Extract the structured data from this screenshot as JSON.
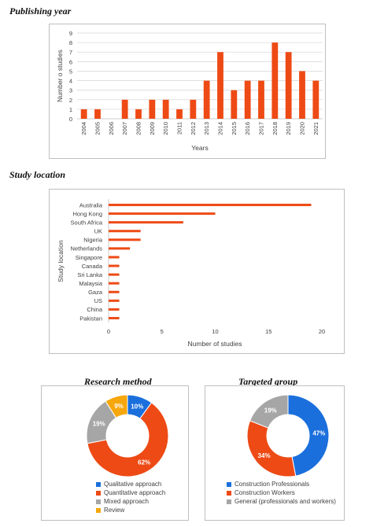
{
  "sections": {
    "publishing_year": "Publishing year",
    "study_location": "Study location",
    "research_method": "Research method",
    "targeted_group": "Targeted group"
  },
  "colors": {
    "orange": "#ee4a15",
    "blue": "#1a6fdc",
    "gray": "#a6a6a6",
    "yellow": "#f6a70c",
    "grid": "#d9d9d9"
  },
  "chart_data": [
    {
      "type": "bar",
      "categories": [
        "2004",
        "2005",
        "2006",
        "2007",
        "2008",
        "2009",
        "2010",
        "2011",
        "2012",
        "2013",
        "2014",
        "2015",
        "2016",
        "2017",
        "2018",
        "2019",
        "2020",
        "2021"
      ],
      "values": [
        1,
        1,
        0,
        2,
        1,
        2,
        2,
        1,
        2,
        4,
        7,
        3,
        4,
        4,
        8,
        7,
        5,
        4
      ],
      "xlabel": "Years",
      "ylabel": "Number o studies",
      "ylim": [
        0,
        9
      ],
      "yticks": [
        "0",
        "1",
        "2",
        "3",
        "4",
        "5",
        "6",
        "7",
        "8",
        "9"
      ],
      "grid": true
    },
    {
      "type": "bar",
      "orientation": "horizontal",
      "categories": [
        "Australia",
        "Hong Kong",
        "South Africa",
        "UK",
        "Nigeria",
        "Netherlands",
        "Singapore",
        "Canada",
        "Sri Lanka",
        "Malaysia",
        "Gaza",
        "US",
        "China",
        "Pakistan"
      ],
      "values": [
        19,
        10,
        7,
        3,
        3,
        2,
        1,
        1,
        1,
        1,
        1,
        1,
        1,
        1
      ],
      "xlabel": "Number of studies",
      "ylabel": "Study location",
      "xlim": [
        0,
        20
      ],
      "xticks": [
        "0",
        "5",
        "10",
        "15",
        "20"
      ]
    },
    {
      "type": "pie",
      "donut": true,
      "labels": [
        "Qualitative approach",
        "Quantitative approach",
        "Mixed approach",
        "Review"
      ],
      "values": [
        10,
        62,
        19,
        9
      ],
      "data_labels": [
        "10%",
        "62%",
        "19%",
        "9%"
      ],
      "colors": [
        "#1a6fdc",
        "#ee4a15",
        "#a6a6a6",
        "#f6a70c"
      ],
      "legend": "bottom"
    },
    {
      "type": "pie",
      "donut": true,
      "labels": [
        "Construction Professionals",
        "Construction Workers",
        "General (professionals and workers)"
      ],
      "values": [
        47,
        34,
        19
      ],
      "data_labels": [
        "47%",
        "34%",
        "19%"
      ],
      "colors": [
        "#1a6fdc",
        "#ee4a15",
        "#a6a6a6"
      ],
      "legend": "bottom"
    }
  ]
}
